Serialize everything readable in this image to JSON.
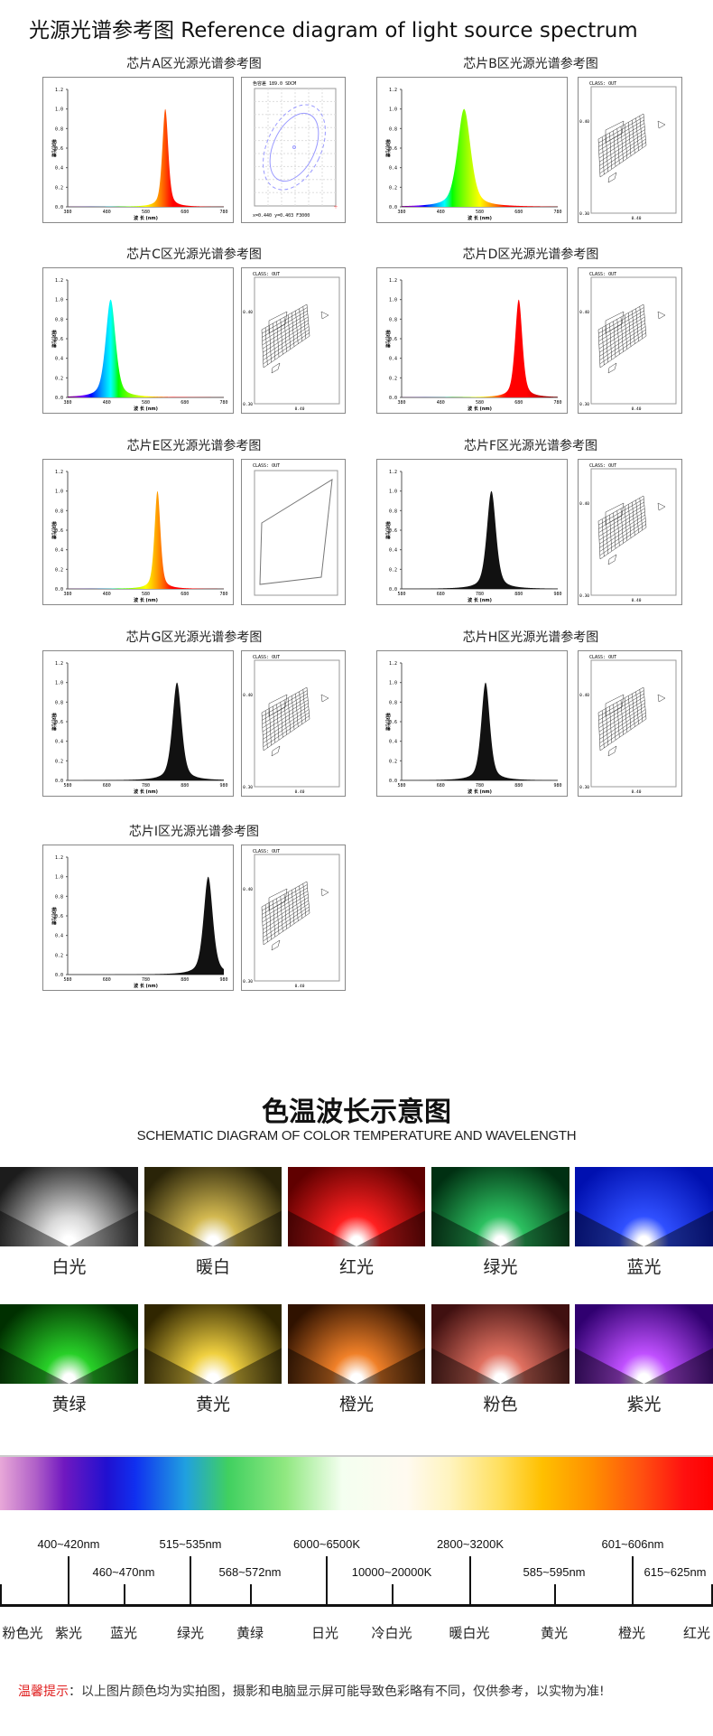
{
  "header": {
    "title": "光源光谱参考图 Reference diagram of light source spectrum"
  },
  "chart_common": {
    "y_axis_label": "相对光谱",
    "x_axis_label": "波 长 (nm)",
    "y_ticks": [
      "0.0",
      "0.2",
      "0.4",
      "0.6",
      "0.8",
      "1.0",
      "1.2"
    ],
    "ylim": [
      0,
      1.2
    ]
  },
  "chips": [
    {
      "title": "芯片A区光源光谱参考图",
      "x_ticks": [
        "380",
        "480",
        "580",
        "680",
        "780"
      ],
      "xlim": [
        380,
        780
      ],
      "peak_nm": 630,
      "fwhm_nm": 18,
      "fill": "spectral",
      "chroma": {
        "type": "ellipse",
        "header": "色容差 189.0 SDCM",
        "footer": "x=0.440 y=0.403 F3000"
      }
    },
    {
      "title": "芯片B区光源光谱参考图",
      "x_ticks": [
        "380",
        "480",
        "580",
        "680",
        "780"
      ],
      "xlim": [
        380,
        780
      ],
      "peak_nm": 540,
      "fwhm_nm": 40,
      "fill": "spectral",
      "chroma": {
        "type": "grid",
        "header": "CLASS: OUT",
        "y_top": "0.40",
        "y_bottom": "0.30",
        "x_mid": "0.40"
      }
    },
    {
      "title": "芯片C区光源光谱参考图",
      "x_ticks": [
        "380",
        "480",
        "580",
        "680",
        "780"
      ],
      "xlim": [
        380,
        780
      ],
      "peak_nm": 490,
      "fwhm_nm": 30,
      "fill": "spectral",
      "chroma": {
        "type": "grid",
        "header": "CLASS: OUT",
        "y_top": "0.40",
        "y_bottom": "0.30",
        "x_mid": "0.40"
      }
    },
    {
      "title": "芯片D区光源光谱参考图",
      "x_ticks": [
        "380",
        "480",
        "580",
        "680",
        "780"
      ],
      "xlim": [
        380,
        780
      ],
      "peak_nm": 680,
      "fwhm_nm": 22,
      "fill": "spectral",
      "chroma": {
        "type": "grid",
        "header": "CLASS: OUT",
        "y_top": "0.40",
        "y_bottom": "0.30",
        "x_mid": "0.40"
      }
    },
    {
      "title": "芯片E区光源光谱参考图",
      "x_ticks": [
        "380",
        "480",
        "580",
        "680",
        "780"
      ],
      "xlim": [
        380,
        780
      ],
      "peak_nm": 610,
      "fwhm_nm": 18,
      "fill": "spectral",
      "chroma": {
        "type": "box",
        "header": "CLASS: OUT"
      }
    },
    {
      "title": "芯片F区光源光谱参考图",
      "x_ticks": [
        "580",
        "680",
        "780",
        "880",
        "980"
      ],
      "xlim": [
        580,
        980
      ],
      "peak_nm": 810,
      "fwhm_nm": 28,
      "fill": "#111111",
      "chroma": {
        "type": "grid",
        "header": "CLASS: OUT",
        "y_top": "0.40",
        "y_bottom": "0.30",
        "x_mid": "0.40"
      }
    },
    {
      "title": "芯片G区光源光谱参考图",
      "x_ticks": [
        "580",
        "680",
        "780",
        "880",
        "980"
      ],
      "xlim": [
        580,
        980
      ],
      "peak_nm": 860,
      "fwhm_nm": 28,
      "fill": "#111111",
      "chroma": {
        "type": "grid",
        "header": "CLASS: OUT",
        "y_top": "0.40",
        "y_bottom": "0.30",
        "x_mid": "0.40"
      }
    },
    {
      "title": "芯片H区光源光谱参考图",
      "x_ticks": [
        "580",
        "680",
        "780",
        "880",
        "980"
      ],
      "xlim": [
        580,
        980
      ],
      "peak_nm": 795,
      "fwhm_nm": 26,
      "fill": "#111111",
      "chroma": {
        "type": "grid",
        "header": "CLASS: OUT",
        "y_top": "0.40",
        "y_bottom": "0.30",
        "x_mid": "0.40"
      }
    },
    {
      "title": "芯片I区光源光谱参考图",
      "x_ticks": [
        "580",
        "680",
        "780",
        "880",
        "980"
      ],
      "xlim": [
        580,
        980
      ],
      "peak_nm": 940,
      "fwhm_nm": 28,
      "fill": "#111111",
      "chroma": {
        "type": "grid",
        "header": "CLASS: OUT",
        "y_top": "0.40",
        "y_bottom": "0.30",
        "x_mid": "0.40"
      }
    }
  ],
  "section2": {
    "title": "色温波长示意图",
    "subtitle": "SCHEMATIC DIAGRAM OF COLOR TEMPERATURE AND WAVELENGTH",
    "tiles": [
      {
        "label": "白光",
        "color": "#d8d8d8",
        "dark": "#1c1c1c"
      },
      {
        "label": "暖白",
        "color": "#d2b850",
        "dark": "#2a2408"
      },
      {
        "label": "红光",
        "color": "#ff2020",
        "dark": "#600000"
      },
      {
        "label": "绿光",
        "color": "#2cc060",
        "dark": "#003012"
      },
      {
        "label": "蓝光",
        "color": "#3050ff",
        "dark": "#0010b0"
      },
      {
        "label": "黄绿",
        "color": "#28d028",
        "dark": "#003000"
      },
      {
        "label": "黄光",
        "color": "#f0d040",
        "dark": "#302600"
      },
      {
        "label": "橙光",
        "color": "#f08028",
        "dark": "#301200"
      },
      {
        "label": "粉色",
        "color": "#e07060",
        "dark": "#401010"
      },
      {
        "label": "紫光",
        "color": "#c050ff",
        "dark": "#300070"
      }
    ]
  },
  "timeline": {
    "upper_labels": [
      "400~420nm",
      "515~535nm",
      "6000~6500K",
      "2800~3200K",
      "601~606nm"
    ],
    "lower_labels": [
      "460~470nm",
      "568~572nm",
      "10000~20000K",
      "585~595nm",
      "615~625nm"
    ],
    "names": [
      "粉色光",
      "紫光",
      "蓝光",
      "绿光",
      "黄绿",
      "日光",
      "冷白光",
      "暖白光",
      "黄光",
      "橙光",
      "红光"
    ]
  },
  "warning": {
    "prefix": "温馨提示",
    "text": "：以上图片颜色均为实拍图，摄影和电脑显示屏可能导致色彩略有不同，仅供参考，以实物为准!"
  }
}
